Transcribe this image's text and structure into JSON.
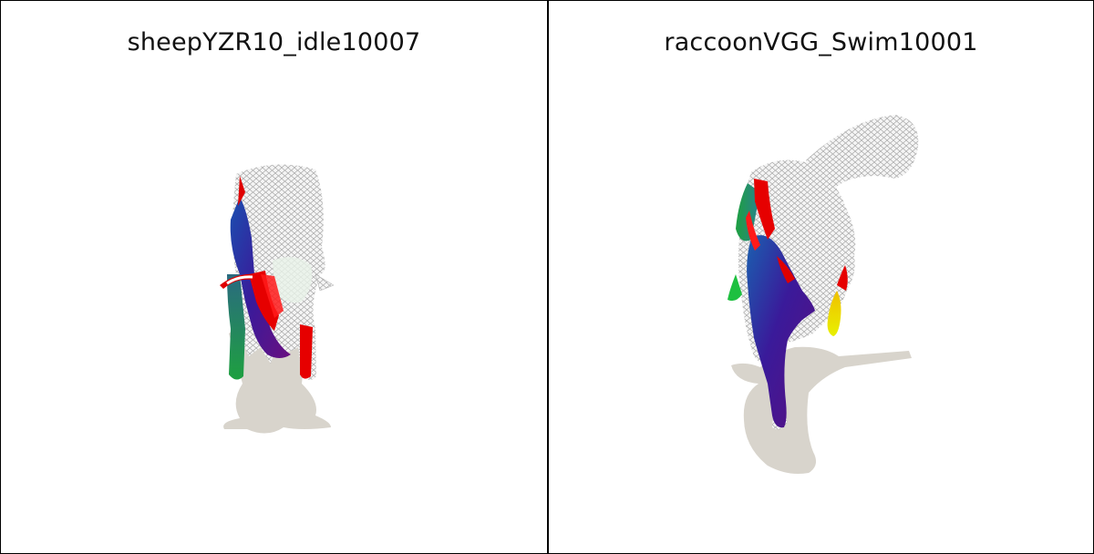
{
  "panels": [
    {
      "title": "sheepYZR10_idle10007",
      "model": "sheep-mesh"
    },
    {
      "title": "raccoonVGG_Swim10001",
      "model": "raccoon-mesh"
    }
  ],
  "colors": {
    "shadow": "#d8d4cc",
    "mesh_wire": "#b8b8b8",
    "mesh_fill": "#f4f4f4",
    "segment_red": "#e60000",
    "segment_blue": "#3a1a9a",
    "segment_green": "#1e9e3a",
    "segment_yellow": "#e8e000",
    "frame_border": "#000000"
  }
}
